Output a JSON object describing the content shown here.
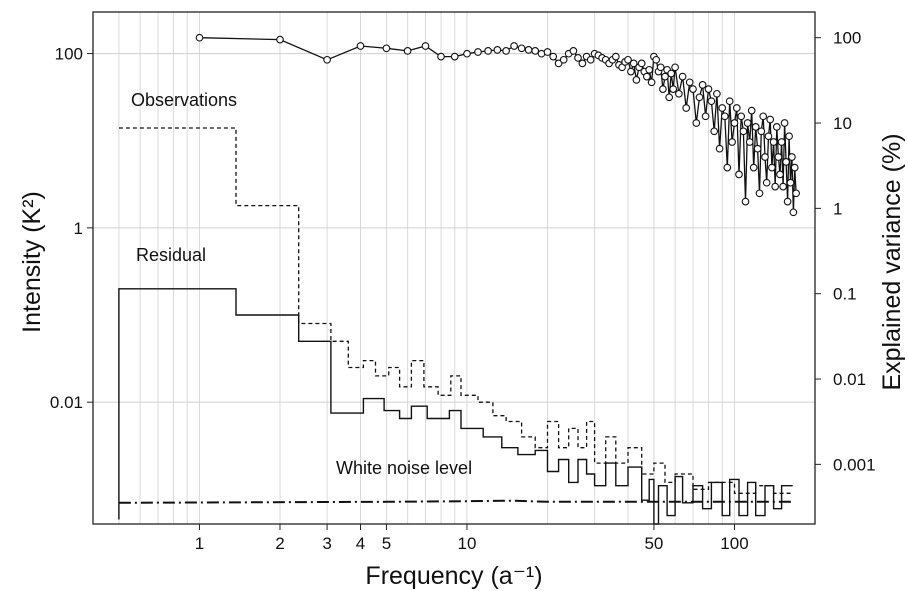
{
  "chart_data": {
    "type": "line",
    "xlabel": "Frequency (a⁻¹)",
    "ylabel_left": "Intensity (K²)",
    "ylabel_right": "Explained variance (%)",
    "xscale": "log",
    "xlim": [
      0.4,
      200
    ],
    "yscale_left": "log",
    "ylim_left": [
      0.0004,
      300
    ],
    "yscale_right": "log",
    "ylim_right": [
      0.0002,
      200
    ],
    "grid": true,
    "x_ticks": [
      "1",
      "2",
      "3",
      "4",
      "5",
      "10",
      "50",
      "100"
    ],
    "y_ticks_left": [
      "100",
      "1",
      "0.01"
    ],
    "y_ticks_right": [
      "100",
      "10",
      "1",
      "0.1",
      "0.01",
      "0.001"
    ],
    "annotations": [
      "Observations",
      "Residual",
      "White noise level"
    ],
    "series": [
      {
        "name": "Observations",
        "axis": "left",
        "style": "dashed-step",
        "points": [
          [
            0.5,
            14
          ],
          [
            1.37,
            14
          ],
          [
            1.37,
            1.8
          ],
          [
            2.35,
            1.8
          ],
          [
            2.35,
            0.08
          ],
          [
            3.1,
            0.08
          ],
          [
            3.1,
            0.05
          ],
          [
            3.6,
            0.05
          ],
          [
            3.6,
            0.025
          ],
          [
            4.1,
            0.025
          ],
          [
            4.1,
            0.03
          ],
          [
            4.55,
            0.03
          ],
          [
            4.55,
            0.02
          ],
          [
            5.1,
            0.02
          ],
          [
            5.1,
            0.025
          ],
          [
            5.6,
            0.025
          ],
          [
            5.6,
            0.015
          ],
          [
            6.2,
            0.015
          ],
          [
            6.2,
            0.03
          ],
          [
            6.9,
            0.03
          ],
          [
            6.9,
            0.015
          ],
          [
            7.8,
            0.015
          ],
          [
            7.8,
            0.012
          ],
          [
            8.7,
            0.012
          ],
          [
            8.7,
            0.02
          ],
          [
            9.5,
            0.02
          ],
          [
            9.5,
            0.012
          ],
          [
            11,
            0.012
          ],
          [
            11,
            0.01
          ],
          [
            12.5,
            0.01
          ],
          [
            12.5,
            0.007
          ],
          [
            14,
            0.007
          ],
          [
            14,
            0.006
          ],
          [
            16,
            0.006
          ],
          [
            16,
            0.004
          ],
          [
            18,
            0.004
          ],
          [
            18,
            0.003
          ],
          [
            20,
            0.003
          ],
          [
            20,
            0.006
          ],
          [
            22,
            0.006
          ],
          [
            22,
            0.003
          ],
          [
            24,
            0.003
          ],
          [
            24,
            0.005
          ],
          [
            26,
            0.005
          ],
          [
            26,
            0.003
          ],
          [
            28,
            0.003
          ],
          [
            28,
            0.006
          ],
          [
            30,
            0.006
          ],
          [
            30,
            0.002
          ],
          [
            33,
            0.002
          ],
          [
            33,
            0.004
          ],
          [
            36,
            0.004
          ],
          [
            36,
            0.002
          ],
          [
            40,
            0.002
          ],
          [
            40,
            0.003
          ],
          [
            45,
            0.003
          ],
          [
            45,
            0.0015
          ],
          [
            50,
            0.0015
          ],
          [
            50,
            0.002
          ],
          [
            55,
            0.002
          ],
          [
            55,
            0.0012
          ],
          [
            60,
            0.0012
          ],
          [
            60,
            0.0015
          ],
          [
            70,
            0.0015
          ],
          [
            70,
            0.001
          ],
          [
            80,
            0.001
          ],
          [
            80,
            0.0012
          ],
          [
            100,
            0.0012
          ],
          [
            100,
            0.0009
          ],
          [
            120,
            0.0009
          ],
          [
            120,
            0.0011
          ],
          [
            140,
            0.0011
          ],
          [
            140,
            0.0009
          ],
          [
            165,
            0.0009
          ]
        ]
      },
      {
        "name": "Residual",
        "axis": "left",
        "style": "solid-step",
        "points": [
          [
            0.5,
            0.00045
          ],
          [
            0.5,
            0.2
          ],
          [
            1.37,
            0.2
          ],
          [
            1.37,
            0.1
          ],
          [
            2.35,
            0.1
          ],
          [
            2.35,
            0.05
          ],
          [
            3.1,
            0.05
          ],
          [
            3.1,
            0.0075
          ],
          [
            4.1,
            0.0075
          ],
          [
            4.1,
            0.011
          ],
          [
            4.9,
            0.011
          ],
          [
            4.9,
            0.008
          ],
          [
            5.6,
            0.008
          ],
          [
            5.6,
            0.0065
          ],
          [
            6.2,
            0.0065
          ],
          [
            6.2,
            0.009
          ],
          [
            7.1,
            0.009
          ],
          [
            7.1,
            0.0065
          ],
          [
            8.6,
            0.0065
          ],
          [
            8.6,
            0.008
          ],
          [
            9.5,
            0.008
          ],
          [
            9.5,
            0.005
          ],
          [
            11.5,
            0.005
          ],
          [
            11.5,
            0.004
          ],
          [
            13.5,
            0.004
          ],
          [
            13.5,
            0.003
          ],
          [
            15.5,
            0.003
          ],
          [
            15.5,
            0.0025
          ],
          [
            18,
            0.0025
          ],
          [
            18,
            0.0028
          ],
          [
            20,
            0.0028
          ],
          [
            20,
            0.0016
          ],
          [
            22,
            0.0016
          ],
          [
            22,
            0.0022
          ],
          [
            24,
            0.0022
          ],
          [
            24,
            0.0012
          ],
          [
            26,
            0.0012
          ],
          [
            26,
            0.0022
          ],
          [
            28,
            0.0022
          ],
          [
            28,
            0.0015
          ],
          [
            30,
            0.0015
          ],
          [
            30,
            0.0011
          ],
          [
            33,
            0.0011
          ],
          [
            33,
            0.002
          ],
          [
            36,
            0.002
          ],
          [
            36,
            0.0011
          ],
          [
            40,
            0.0011
          ],
          [
            40,
            0.0018
          ],
          [
            45,
            0.0018
          ],
          [
            45,
            0.00075
          ],
          [
            48,
            0.00075
          ],
          [
            48,
            0.0013
          ],
          [
            50,
            0.0013
          ],
          [
            50,
            0.0004
          ],
          [
            52,
            0.0004
          ],
          [
            52,
            0.0011
          ],
          [
            56,
            0.0011
          ],
          [
            56,
            0.0005
          ],
          [
            60,
            0.0005
          ],
          [
            60,
            0.0014
          ],
          [
            64,
            0.0014
          ],
          [
            64,
            0.0007
          ],
          [
            70,
            0.0007
          ],
          [
            70,
            0.0011
          ],
          [
            76,
            0.0011
          ],
          [
            76,
            0.0006
          ],
          [
            82,
            0.0006
          ],
          [
            82,
            0.0012
          ],
          [
            90,
            0.0012
          ],
          [
            90,
            0.0005
          ],
          [
            96,
            0.0005
          ],
          [
            96,
            0.0013
          ],
          [
            104,
            0.0013
          ],
          [
            104,
            0.0005
          ],
          [
            112,
            0.0005
          ],
          [
            112,
            0.0012
          ],
          [
            120,
            0.0012
          ],
          [
            120,
            0.0005
          ],
          [
            130,
            0.0005
          ],
          [
            130,
            0.0011
          ],
          [
            140,
            0.0011
          ],
          [
            140,
            0.0006
          ],
          [
            150,
            0.0006
          ],
          [
            150,
            0.0011
          ],
          [
            165,
            0.0011
          ]
        ]
      },
      {
        "name": "White noise level",
        "axis": "left",
        "style": "dash-dot",
        "points": [
          [
            0.5,
            0.0007
          ],
          [
            5,
            0.00072
          ],
          [
            10,
            0.00073
          ],
          [
            15,
            0.00074
          ],
          [
            20,
            0.00072
          ],
          [
            50,
            0.00072
          ],
          [
            100,
            0.00072
          ],
          [
            165,
            0.00072
          ]
        ]
      },
      {
        "name": "Explained variance",
        "axis": "right",
        "style": "line-circles",
        "points": [
          [
            1,
            100
          ],
          [
            2,
            95
          ],
          [
            3,
            55
          ],
          [
            4,
            80
          ],
          [
            5,
            75
          ],
          [
            6,
            70
          ],
          [
            7,
            80
          ],
          [
            8,
            60
          ],
          [
            9,
            60
          ],
          [
            10,
            65
          ],
          [
            11,
            68
          ],
          [
            12,
            70
          ],
          [
            13,
            72
          ],
          [
            14,
            70
          ],
          [
            15,
            80
          ],
          [
            16,
            75
          ],
          [
            17,
            72
          ],
          [
            18,
            70
          ],
          [
            19,
            65
          ],
          [
            20,
            68
          ],
          [
            21,
            60
          ],
          [
            22,
            50
          ],
          [
            23,
            55
          ],
          [
            24,
            65
          ],
          [
            25,
            70
          ],
          [
            26,
            58
          ],
          [
            27,
            50
          ],
          [
            28,
            60
          ],
          [
            29,
            55
          ],
          [
            30,
            65
          ],
          [
            31,
            62
          ],
          [
            32,
            58
          ],
          [
            33,
            55
          ],
          [
            34,
            50
          ],
          [
            35,
            55
          ],
          [
            36,
            60
          ],
          [
            37,
            48
          ],
          [
            38,
            45
          ],
          [
            39,
            52
          ],
          [
            40,
            55
          ],
          [
            41,
            40
          ],
          [
            42,
            50
          ],
          [
            43,
            32
          ],
          [
            44,
            45
          ],
          [
            45,
            50
          ],
          [
            46,
            40
          ],
          [
            47,
            35
          ],
          [
            48,
            42
          ],
          [
            49,
            30
          ],
          [
            50,
            60
          ],
          [
            51,
            55
          ],
          [
            52,
            40
          ],
          [
            53,
            45
          ],
          [
            54,
            25
          ],
          [
            55,
            35
          ],
          [
            56,
            42
          ],
          [
            57,
            20
          ],
          [
            58,
            38
          ],
          [
            59,
            25
          ],
          [
            60,
            45
          ],
          [
            62,
            22
          ],
          [
            64,
            35
          ],
          [
            66,
            15
          ],
          [
            68,
            30
          ],
          [
            70,
            25
          ],
          [
            72,
            10
          ],
          [
            74,
            20
          ],
          [
            76,
            28
          ],
          [
            78,
            12
          ],
          [
            80,
            25
          ],
          [
            82,
            18
          ],
          [
            84,
            8
          ],
          [
            86,
            22
          ],
          [
            88,
            5
          ],
          [
            90,
            15
          ],
          [
            92,
            12
          ],
          [
            94,
            3
          ],
          [
            96,
            18
          ],
          [
            98,
            6
          ],
          [
            100,
            10
          ],
          [
            102,
            15
          ],
          [
            104,
            2.5
          ],
          [
            106,
            12
          ],
          [
            108,
            8
          ],
          [
            110,
            1.2
          ],
          [
            112,
            10
          ],
          [
            114,
            6
          ],
          [
            116,
            14
          ],
          [
            118,
            3
          ],
          [
            120,
            9
          ],
          [
            122,
            5
          ],
          [
            124,
            1.5
          ],
          [
            126,
            8
          ],
          [
            128,
            12
          ],
          [
            130,
            4
          ],
          [
            132,
            2
          ],
          [
            134,
            7
          ],
          [
            136,
            11
          ],
          [
            138,
            3
          ],
          [
            140,
            6
          ],
          [
            142,
            1.8
          ],
          [
            144,
            9
          ],
          [
            146,
            4
          ],
          [
            148,
            2.5
          ],
          [
            150,
            6
          ],
          [
            152,
            1.8
          ],
          [
            154,
            10
          ],
          [
            156,
            3.5
          ],
          [
            158,
            1.2
          ],
          [
            160,
            7
          ],
          [
            162,
            2
          ],
          [
            164,
            4
          ],
          [
            166,
            0.9
          ],
          [
            168,
            3
          ],
          [
            170,
            1.5
          ]
        ]
      }
    ]
  }
}
